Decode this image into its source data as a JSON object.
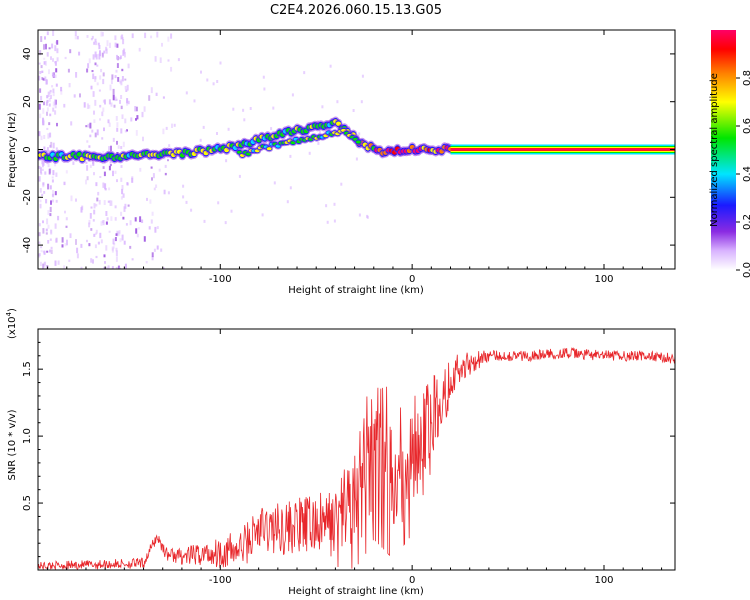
{
  "title": "C2E4.2026.060.15.13.G05",
  "colors": {
    "snr_line": "#e8272b",
    "axis": "#000000",
    "colormap": [
      "#ffffff",
      "#d9b3ff",
      "#8a2be2",
      "#1a1aff",
      "#00e5ff",
      "#00e600",
      "#ffff00",
      "#ff8000",
      "#ff0000",
      "#ff0066"
    ]
  },
  "chart_data": [
    {
      "type": "heatmap",
      "name": "spectrogram",
      "xlabel": "Height of straight line (km)",
      "ylabel": "Frequency (Hz)",
      "xlim": [
        -195,
        137
      ],
      "ylim": [
        -50,
        50
      ],
      "xticks": [
        -100,
        0,
        100
      ],
      "xtick_labels": [
        "-100",
        "0",
        "100"
      ],
      "yticks": [
        -40,
        -20,
        0,
        20,
        40
      ],
      "ytick_labels": [
        "-40",
        "-20",
        "0",
        "20",
        "40"
      ],
      "colorbar": {
        "label": "Normalized spectral amplitude",
        "range": [
          0,
          1
        ],
        "ticks": [
          0.0,
          0.2,
          0.4,
          0.6,
          0.8
        ],
        "tick_labels": [
          "0.0",
          "0.2",
          "0.4",
          "0.6",
          "0.8"
        ]
      },
      "ridge": {
        "x": [
          -195,
          -160,
          -140,
          -120,
          -100,
          -80,
          -60,
          -40,
          -32,
          -25,
          -15,
          0,
          10,
          20,
          137
        ],
        "y": [
          -3,
          -3,
          -2.5,
          -1.5,
          0,
          4,
          8,
          11,
          6,
          2,
          -1,
          0,
          0,
          0,
          0
        ],
        "amplitude": [
          0.45,
          0.5,
          0.55,
          0.55,
          0.5,
          0.45,
          0.45,
          0.5,
          0.6,
          0.65,
          0.75,
          0.85,
          0.9,
          0.95,
          1.0
        ]
      },
      "secondary_ridge": {
        "x": [
          -90,
          -70,
          -50,
          -35,
          -28
        ],
        "y": [
          -2,
          2,
          5,
          8,
          4
        ]
      }
    },
    {
      "type": "line",
      "name": "snr",
      "xlabel": "Height of straight line (km)",
      "ylabel": "SNR (10 * v/v)",
      "scale_label": "(x10",
      "scale_exp": "4",
      "scale_close": ")",
      "xlim": [
        -195,
        137
      ],
      "ylim": [
        0,
        1.8
      ],
      "xticks": [
        -100,
        0,
        100
      ],
      "xtick_labels": [
        "-100",
        "0",
        "100"
      ],
      "yticks": [
        0.5,
        1.0,
        1.5
      ],
      "ytick_labels": [
        "0.5",
        "1.0",
        "1.5"
      ],
      "trend": {
        "x": [
          -195,
          -140,
          -133,
          -128,
          -120,
          -90,
          -80,
          -40,
          -30,
          -25,
          -20,
          -10,
          0,
          5,
          10,
          15,
          20,
          30,
          40,
          60,
          80,
          100,
          120,
          137
        ],
        "y": [
          0.03,
          0.05,
          0.25,
          0.12,
          0.1,
          0.15,
          0.3,
          0.35,
          0.55,
          0.75,
          0.9,
          0.8,
          0.85,
          1.05,
          1.15,
          1.3,
          1.45,
          1.55,
          1.6,
          1.6,
          1.62,
          1.6,
          1.6,
          1.58
        ]
      },
      "noise": {
        "x": [
          -195,
          -140,
          -120,
          -80,
          -40,
          -25,
          -10,
          5,
          20,
          40,
          137
        ],
        "amp": [
          0.03,
          0.04,
          0.06,
          0.18,
          0.25,
          0.5,
          0.55,
          0.4,
          0.15,
          0.04,
          0.04
        ]
      }
    }
  ]
}
